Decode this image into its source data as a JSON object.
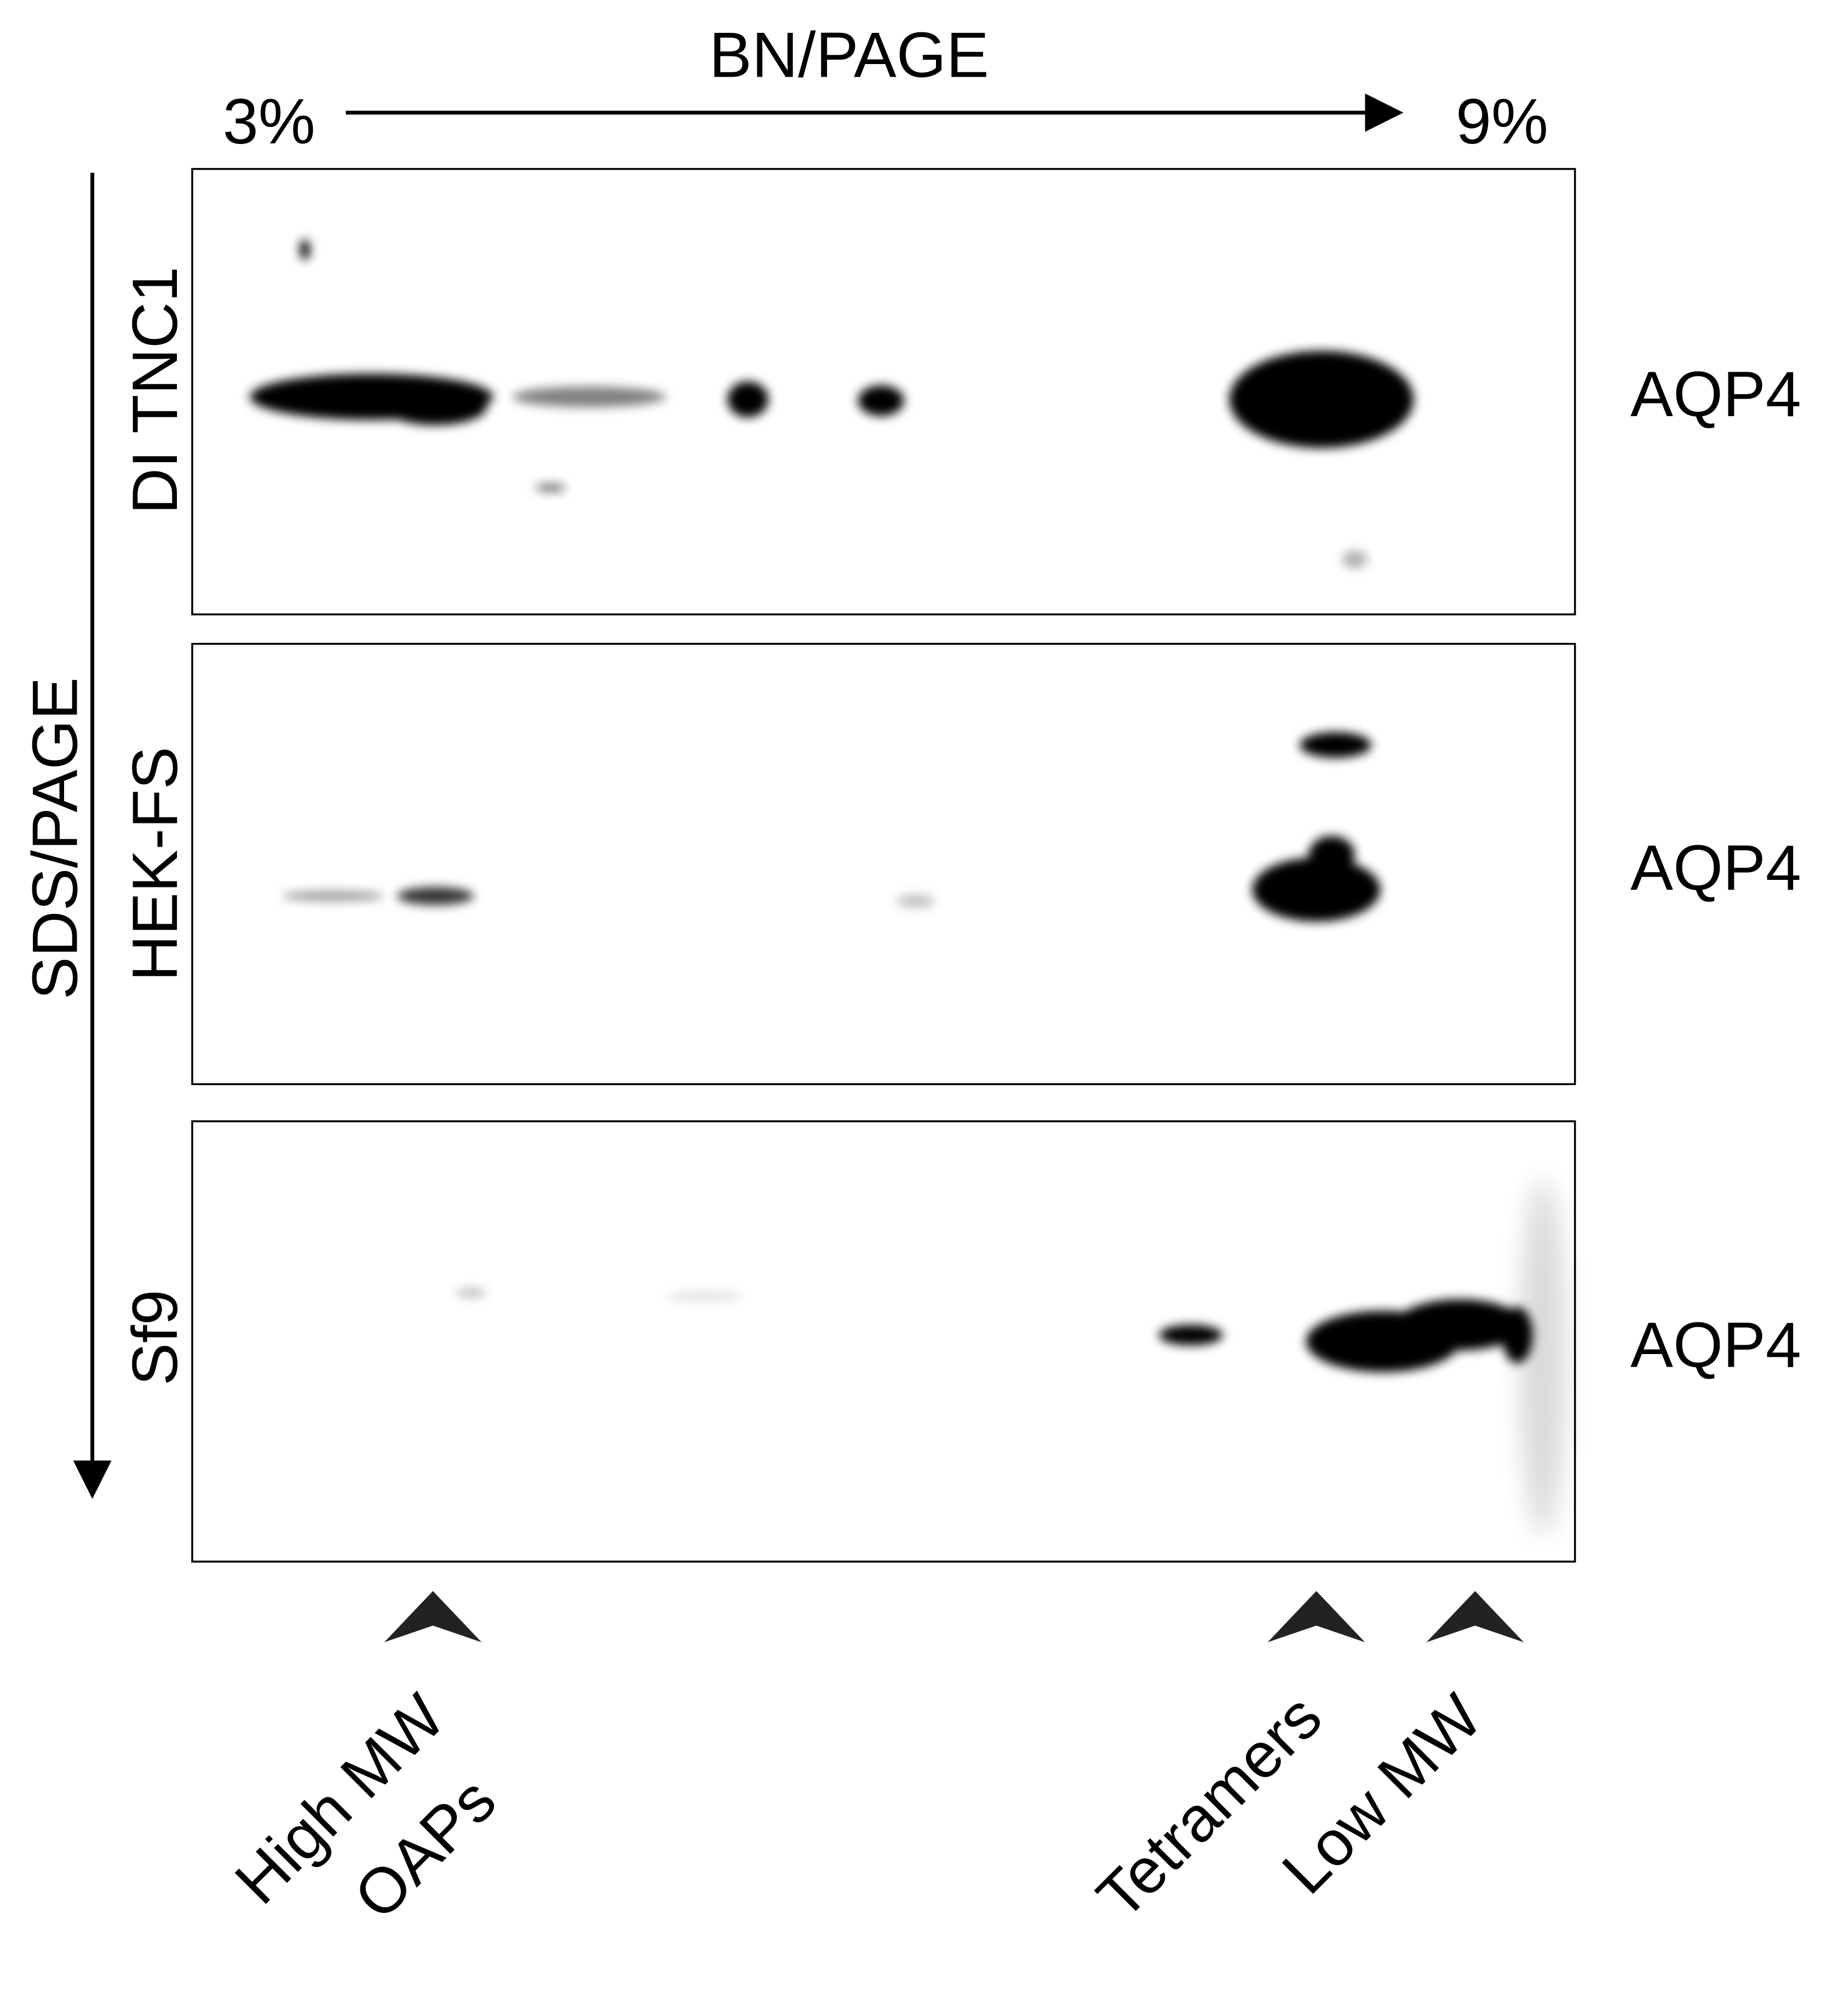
{
  "header": {
    "x_axis_title": "BN/PAGE",
    "gradient_start": "3%",
    "gradient_end": "9%",
    "y_axis_title": "SDS/PAGE"
  },
  "panels": [
    {
      "label": "DI TNC1",
      "marker": "AQP4"
    },
    {
      "label": "HEK-FS",
      "marker": "AQP4"
    },
    {
      "label": "Sf9",
      "marker": "AQP4"
    }
  ],
  "arrow_labels": [
    [
      "High MW",
      "OAPs"
    ],
    [
      "Tetramers"
    ],
    [
      "Low MW"
    ]
  ]
}
